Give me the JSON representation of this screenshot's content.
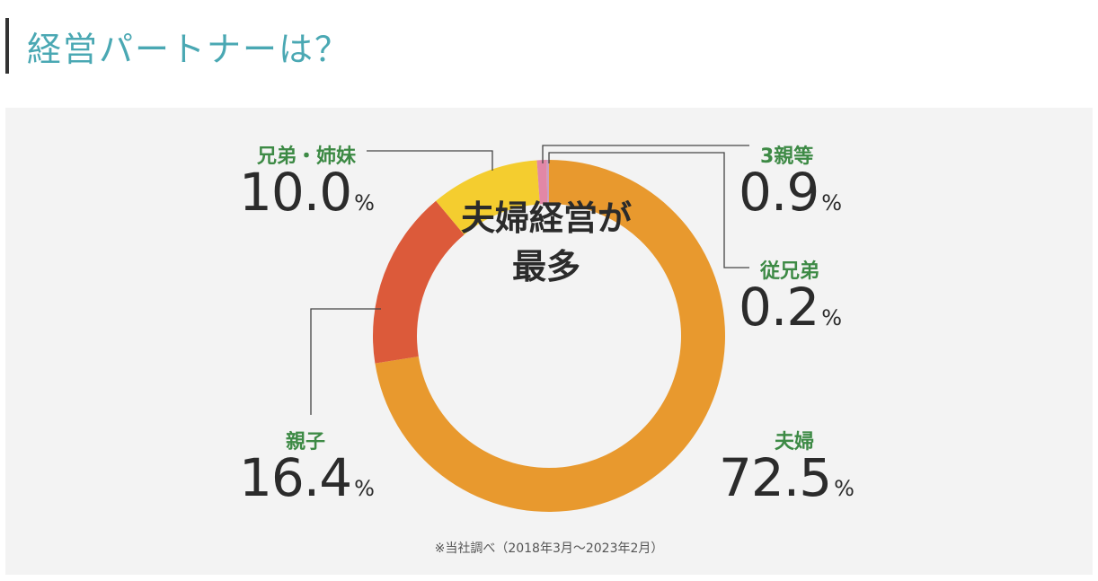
{
  "heading": {
    "title": "経営パートナーは？"
  },
  "chart_data": {
    "type": "donut",
    "center_text": [
      "夫婦経営が",
      "最多"
    ],
    "note": "※当社調べ（2018年3月〜2023年2月）",
    "unit": "%",
    "series": [
      {
        "name": "夫婦",
        "value": 72.5,
        "value_text": "72.5",
        "color": "#e8992e"
      },
      {
        "name": "親子",
        "value": 16.4,
        "value_text": "16.4",
        "color": "#dc5a3a"
      },
      {
        "name": "兄弟・姉妹",
        "value": 10.0,
        "value_text": "10.0",
        "color": "#f4cd2f"
      },
      {
        "name": "3親等",
        "value": 0.9,
        "value_text": "0.9",
        "color": "#e287a6"
      },
      {
        "name": "従兄弟",
        "value": 0.2,
        "value_text": "0.2",
        "color": "#c9a0c0"
      }
    ]
  },
  "colors": {
    "heading": "#4aa8b3",
    "label": "#3d8a45",
    "panel": "#f3f3f3"
  }
}
